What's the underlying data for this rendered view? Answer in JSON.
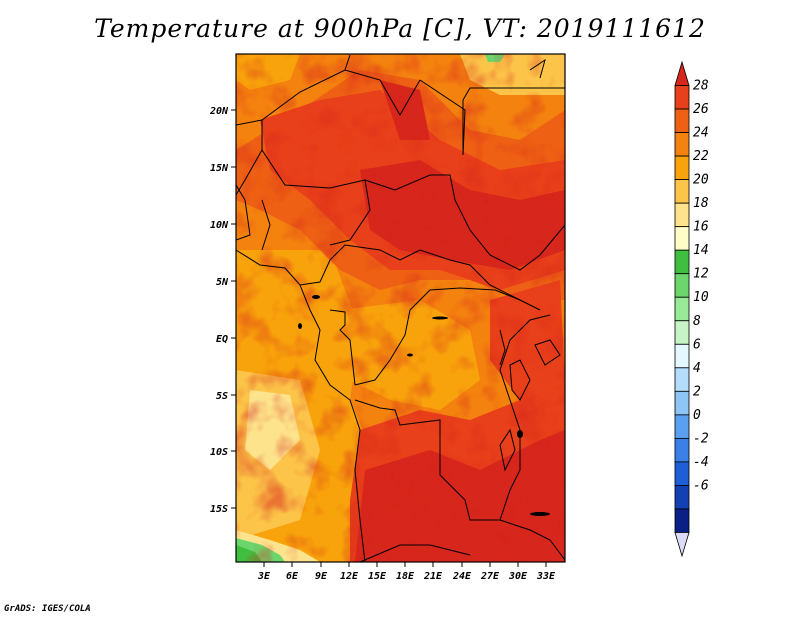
{
  "title": "Temperature at 900hPa [C], VT: 2019111612",
  "credit": "GrADS: IGES/COLA",
  "latitude_labels": [
    "20N",
    "15N",
    "10N",
    "5N",
    "EQ",
    "5S",
    "10S",
    "15S"
  ],
  "longitude_labels": [
    "3E",
    "6E",
    "9E",
    "12E",
    "15E",
    "18E",
    "21E",
    "24E",
    "27E",
    "30E",
    "33E"
  ],
  "colorbar": {
    "labels": [
      "28",
      "26",
      "24",
      "22",
      "20",
      "18",
      "16",
      "14",
      "12",
      "10",
      "8",
      "6",
      "4",
      "2",
      "0",
      "-2",
      "-4",
      "-6"
    ],
    "colors_top_to_bottom": [
      "#d7261c",
      "#e8401a",
      "#ee6114",
      "#f4820f",
      "#f8a30c",
      "#fcc449",
      "#fde38c",
      "#fefcc7",
      "#3fbe3f",
      "#6cd66c",
      "#98e998",
      "#c6f4c6",
      "#e4f8ff",
      "#b4dcfb",
      "#8ec5f5",
      "#5a9ff0",
      "#3a80e6",
      "#1e5ed6",
      "#1340b2",
      "#0a2086",
      "#dcdcf8"
    ]
  }
}
